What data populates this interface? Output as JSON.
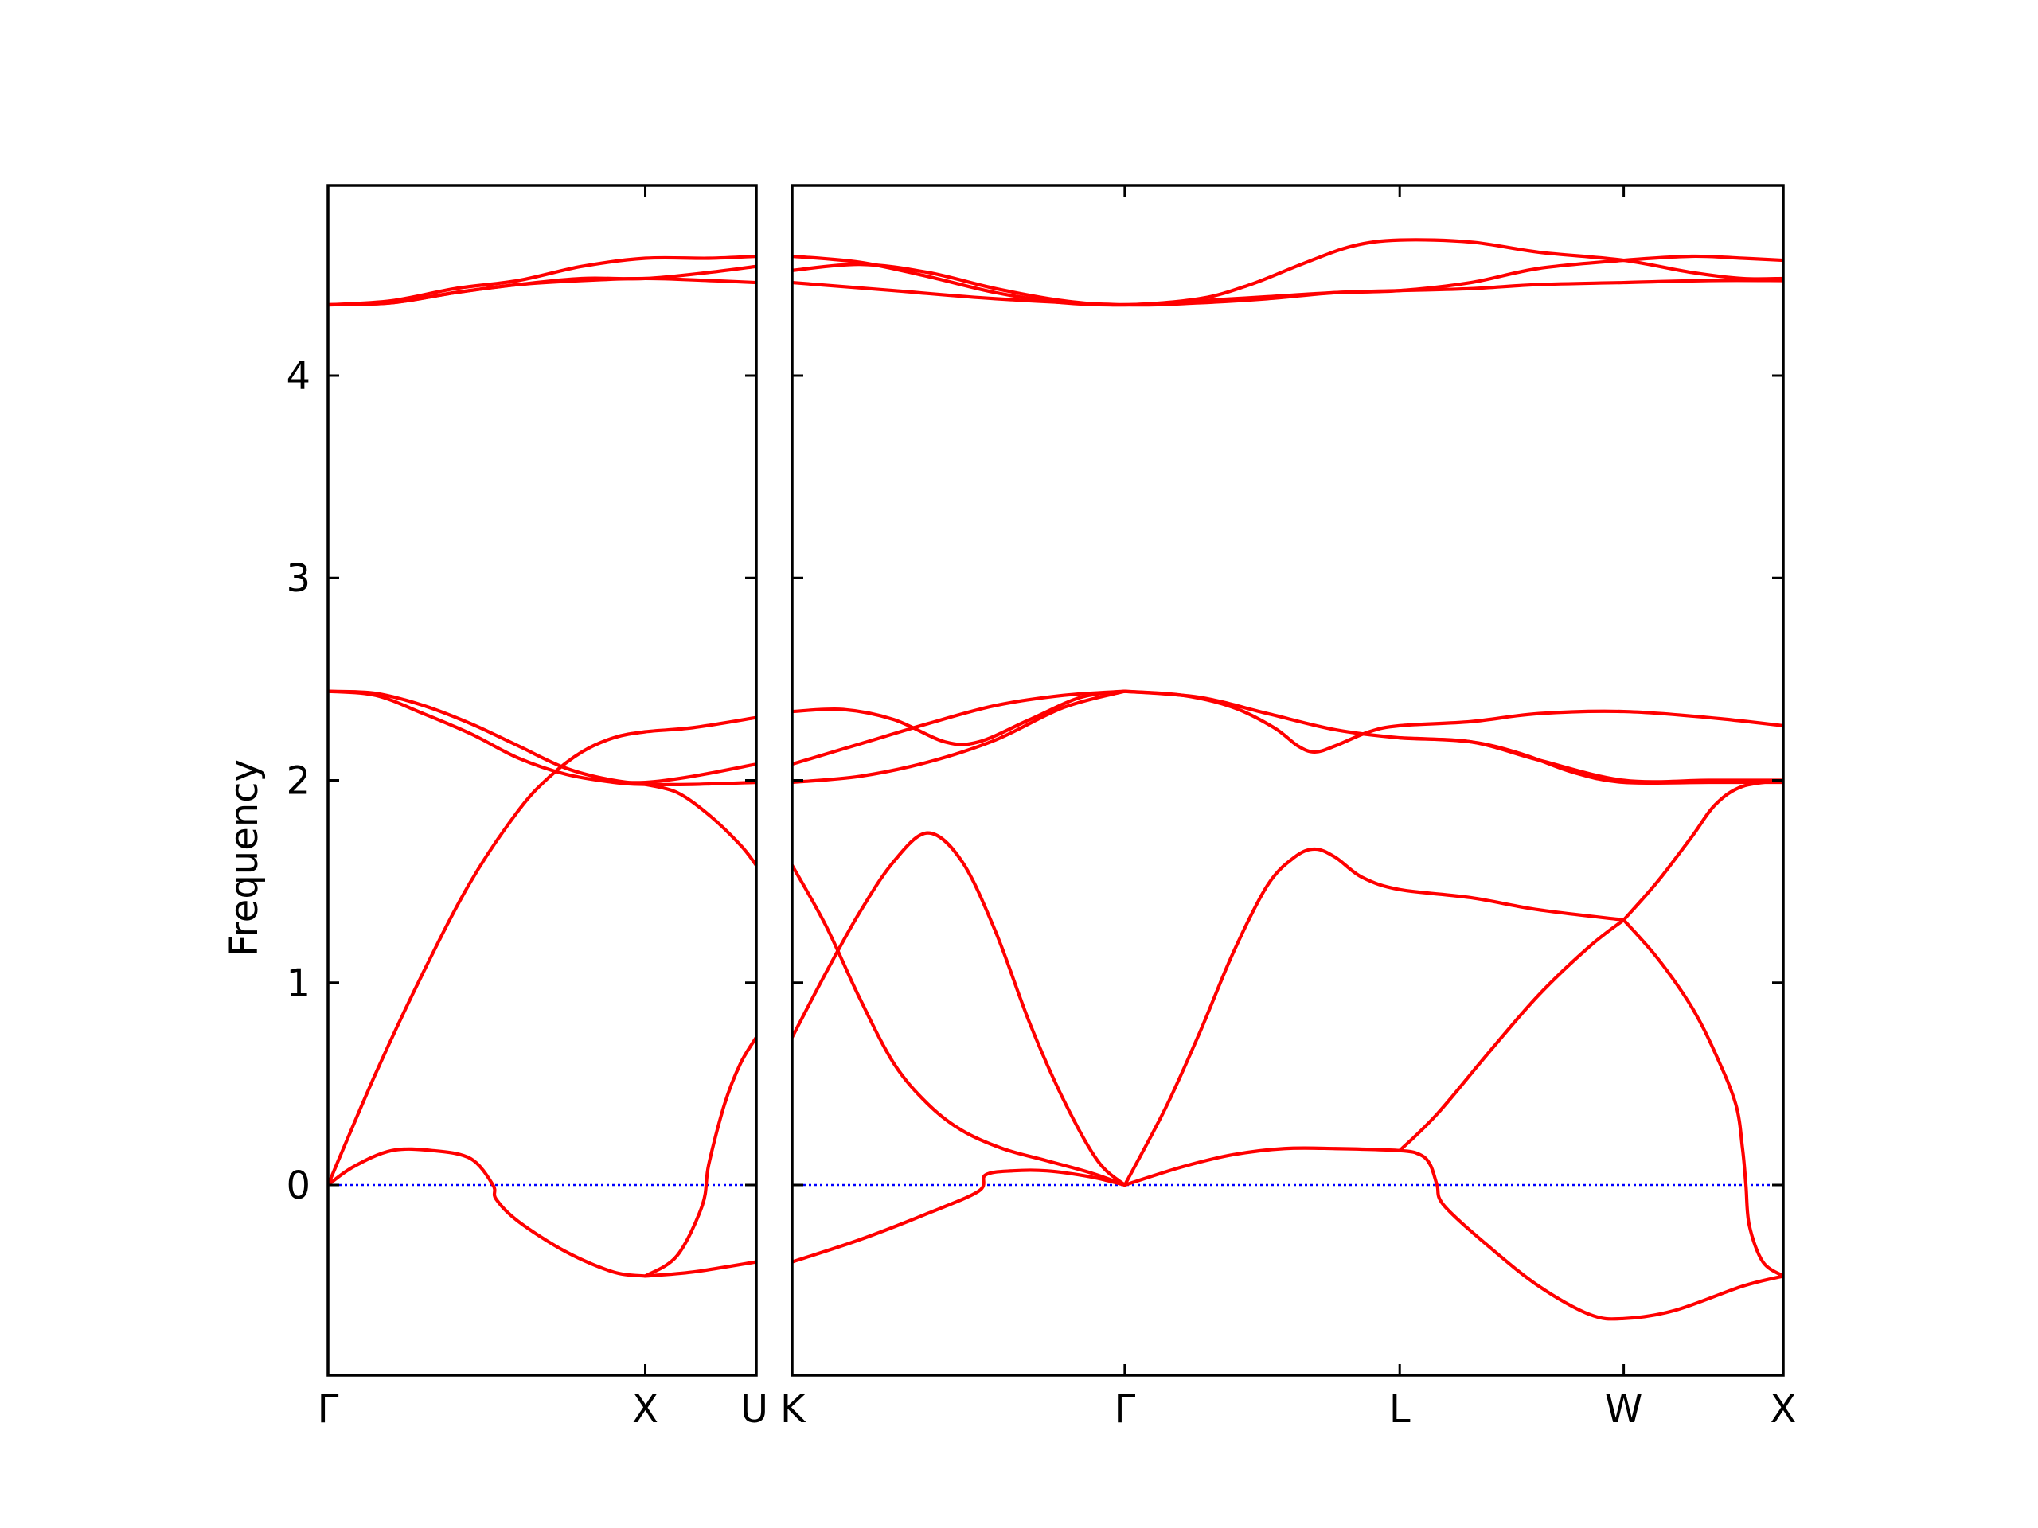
{
  "chart_data": {
    "type": "line",
    "title": "",
    "xlabel": "",
    "ylabel": "Frequency",
    "ylim": [
      -0.94,
      4.94
    ],
    "yticks": [
      0,
      1,
      2,
      3,
      4
    ],
    "grid": false,
    "colors": {
      "band": "#ff0000",
      "zero_line": "#0000ff",
      "axes": "#000000"
    },
    "panels": [
      {
        "id": "left",
        "xlim": [
          0,
          1.35
        ],
        "xticks": [
          {
            "x": 0,
            "label": "Γ"
          },
          {
            "x": 1,
            "label": "X"
          },
          {
            "x": 1.35,
            "label": "U"
          }
        ],
        "bands": [
          [
            [
              0,
              0
            ],
            [
              0.08,
              0.09
            ],
            [
              0.2,
              0.17
            ],
            [
              0.33,
              0.17
            ],
            [
              0.45,
              0.13
            ],
            [
              0.52,
              0
            ],
            [
              0.53,
              -0.07
            ],
            [
              0.6,
              -0.18
            ],
            [
              0.75,
              -0.33
            ],
            [
              0.9,
              -0.43
            ],
            [
              1,
              -0.45
            ]
          ],
          [
            [
              1,
              -0.45
            ],
            [
              1.15,
              -0.43
            ],
            [
              1.35,
              -0.38
            ]
          ],
          [
            [
              0,
              0
            ],
            [
              0.15,
              0.55
            ],
            [
              0.3,
              1.05
            ],
            [
              0.45,
              1.5
            ],
            [
              0.6,
              1.85
            ],
            [
              0.7,
              2.02
            ],
            [
              0.8,
              2.14
            ],
            [
              0.9,
              2.21
            ],
            [
              1,
              2.24
            ],
            [
              1.15,
              2.26
            ],
            [
              1.35,
              2.31
            ]
          ],
          [
            [
              0,
              2.44
            ],
            [
              0.15,
              2.43
            ],
            [
              0.3,
              2.37
            ],
            [
              0.45,
              2.28
            ],
            [
              0.6,
              2.17
            ],
            [
              0.75,
              2.06
            ],
            [
              0.9,
              2.0
            ],
            [
              1,
              1.99
            ],
            [
              1.15,
              2.02
            ],
            [
              1.35,
              2.08
            ]
          ],
          [
            [
              0,
              2.44
            ],
            [
              0.15,
              2.42
            ],
            [
              0.3,
              2.33
            ],
            [
              0.45,
              2.23
            ],
            [
              0.6,
              2.11
            ],
            [
              0.75,
              2.03
            ],
            [
              0.9,
              1.99
            ],
            [
              1,
              1.98
            ],
            [
              1.15,
              1.98
            ],
            [
              1.35,
              1.99
            ]
          ],
          [
            [
              1,
              -0.45
            ],
            [
              1.1,
              -0.35
            ],
            [
              1.18,
              -0.1
            ],
            [
              1.2,
              0.1
            ],
            [
              1.25,
              0.4
            ],
            [
              1.3,
              0.6
            ],
            [
              1.35,
              0.73
            ]
          ],
          [
            [
              1,
              1.98
            ],
            [
              1.1,
              1.94
            ],
            [
              1.2,
              1.83
            ],
            [
              1.3,
              1.68
            ],
            [
              1.35,
              1.58
            ]
          ],
          [
            [
              0,
              4.35
            ],
            [
              0.2,
              4.36
            ],
            [
              0.4,
              4.41
            ],
            [
              0.6,
              4.45
            ],
            [
              0.8,
              4.47
            ],
            [
              1,
              4.48
            ],
            [
              1.2,
              4.47
            ],
            [
              1.35,
              4.46
            ]
          ],
          [
            [
              0,
              4.35
            ],
            [
              0.2,
              4.36
            ],
            [
              0.4,
              4.41
            ],
            [
              0.6,
              4.45
            ],
            [
              0.8,
              4.48
            ],
            [
              1,
              4.48
            ],
            [
              1.2,
              4.51
            ],
            [
              1.35,
              4.54
            ]
          ],
          [
            [
              0,
              4.35
            ],
            [
              0.2,
              4.37
            ],
            [
              0.4,
              4.43
            ],
            [
              0.6,
              4.47
            ],
            [
              0.8,
              4.54
            ],
            [
              1,
              4.58
            ],
            [
              1.2,
              4.58
            ],
            [
              1.35,
              4.59
            ]
          ]
        ]
      },
      {
        "id": "right",
        "xlim": [
          0,
          2.92
        ],
        "xticks": [
          {
            "x": 0,
            "label": "K"
          },
          {
            "x": 0.98,
            "label": "Γ"
          },
          {
            "x": 1.79,
            "label": "L"
          },
          {
            "x": 2.45,
            "label": "W"
          },
          {
            "x": 2.92,
            "label": "X"
          }
        ],
        "bands": [
          [
            [
              0,
              -0.38
            ],
            [
              0.2,
              -0.27
            ],
            [
              0.4,
              -0.14
            ],
            [
              0.55,
              -0.03
            ],
            [
              0.57,
              0.05
            ],
            [
              0.65,
              0.07
            ],
            [
              0.75,
              0.07
            ],
            [
              0.88,
              0.04
            ],
            [
              0.98,
              0
            ]
          ],
          [
            [
              0,
              1.58
            ],
            [
              0.1,
              1.28
            ],
            [
              0.2,
              0.92
            ],
            [
              0.3,
              0.6
            ],
            [
              0.4,
              0.4
            ],
            [
              0.5,
              0.27
            ],
            [
              0.62,
              0.18
            ],
            [
              0.75,
              0.12
            ],
            [
              0.88,
              0.06
            ],
            [
              0.98,
              0
            ]
          ],
          [
            [
              0,
              0.73
            ],
            [
              0.1,
              1.05
            ],
            [
              0.2,
              1.35
            ],
            [
              0.3,
              1.6
            ],
            [
              0.4,
              1.74
            ],
            [
              0.5,
              1.6
            ],
            [
              0.6,
              1.25
            ],
            [
              0.7,
              0.8
            ],
            [
              0.8,
              0.42
            ],
            [
              0.9,
              0.12
            ],
            [
              0.98,
              0
            ]
          ],
          [
            [
              0.98,
              0
            ],
            [
              1.1,
              0.38
            ],
            [
              1.2,
              0.75
            ],
            [
              1.3,
              1.15
            ],
            [
              1.4,
              1.48
            ],
            [
              1.48,
              1.62
            ],
            [
              1.54,
              1.66
            ],
            [
              1.6,
              1.62
            ],
            [
              1.68,
              1.52
            ],
            [
              1.79,
              1.46
            ],
            [
              2,
              1.42
            ],
            [
              2.2,
              1.36
            ],
            [
              2.45,
              1.31
            ]
          ],
          [
            [
              0.98,
              0
            ],
            [
              1.15,
              0.09
            ],
            [
              1.3,
              0.15
            ],
            [
              1.45,
              0.18
            ],
            [
              1.6,
              0.18
            ],
            [
              1.79,
              0.17
            ],
            [
              1.85,
              0.15
            ],
            [
              1.88,
              0.1
            ],
            [
              1.9,
              0
            ],
            [
              1.92,
              -0.1
            ],
            [
              2.05,
              -0.3
            ],
            [
              2.2,
              -0.5
            ],
            [
              2.35,
              -0.64
            ],
            [
              2.45,
              -0.66
            ],
            [
              2.6,
              -0.62
            ],
            [
              2.8,
              -0.5
            ],
            [
              2.92,
              -0.45
            ]
          ],
          [
            [
              1.79,
              0.17
            ],
            [
              1.9,
              0.35
            ],
            [
              2.05,
              0.65
            ],
            [
              2.2,
              0.94
            ],
            [
              2.35,
              1.18
            ],
            [
              2.45,
              1.31
            ]
          ],
          [
            [
              2.45,
              1.31
            ],
            [
              2.55,
              1.5
            ],
            [
              2.65,
              1.72
            ],
            [
              2.72,
              1.88
            ],
            [
              2.8,
              1.97
            ],
            [
              2.92,
              2.0
            ]
          ],
          [
            [
              2.45,
              1.31
            ],
            [
              2.55,
              1.12
            ],
            [
              2.65,
              0.88
            ],
            [
              2.72,
              0.65
            ],
            [
              2.78,
              0.4
            ],
            [
              2.8,
              0.18
            ],
            [
              2.81,
              0
            ],
            [
              2.82,
              -0.2
            ],
            [
              2.86,
              -0.38
            ],
            [
              2.92,
              -0.45
            ]
          ],
          [
            [
              0,
              2.34
            ],
            [
              0.15,
              2.35
            ],
            [
              0.3,
              2.3
            ],
            [
              0.45,
              2.19
            ],
            [
              0.55,
              2.19
            ],
            [
              0.7,
              2.3
            ],
            [
              0.85,
              2.41
            ],
            [
              0.98,
              2.44
            ]
          ],
          [
            [
              0,
              2.08
            ],
            [
              0.2,
              2.18
            ],
            [
              0.4,
              2.28
            ],
            [
              0.6,
              2.37
            ],
            [
              0.8,
              2.42
            ],
            [
              0.98,
              2.44
            ]
          ],
          [
            [
              0,
              1.99
            ],
            [
              0.2,
              2.02
            ],
            [
              0.4,
              2.09
            ],
            [
              0.6,
              2.2
            ],
            [
              0.8,
              2.36
            ],
            [
              0.98,
              2.44
            ]
          ],
          [
            [
              0.98,
              2.44
            ],
            [
              1.15,
              2.42
            ],
            [
              1.3,
              2.36
            ],
            [
              1.42,
              2.26
            ],
            [
              1.49,
              2.17
            ],
            [
              1.54,
              2.14
            ],
            [
              1.6,
              2.17
            ],
            [
              1.7,
              2.24
            ],
            [
              1.79,
              2.27
            ],
            [
              2.0,
              2.29
            ],
            [
              2.2,
              2.33
            ],
            [
              2.45,
              2.34
            ],
            [
              2.7,
              2.31
            ],
            [
              2.92,
              2.27
            ]
          ],
          [
            [
              0.98,
              2.44
            ],
            [
              1.2,
              2.41
            ],
            [
              1.4,
              2.33
            ],
            [
              1.6,
              2.25
            ],
            [
              1.79,
              2.21
            ],
            [
              2.0,
              2.19
            ],
            [
              2.2,
              2.1
            ],
            [
              2.45,
              2.0
            ],
            [
              2.7,
              2.0
            ],
            [
              2.92,
              2.0
            ]
          ],
          [
            [
              1.79,
              2.21
            ],
            [
              2.0,
              2.19
            ],
            [
              2.15,
              2.13
            ],
            [
              2.3,
              2.04
            ],
            [
              2.45,
              1.99
            ],
            [
              2.7,
              1.99
            ],
            [
              2.92,
              1.99
            ]
          ],
          [
            [
              0,
              4.46
            ],
            [
              0.3,
              4.42
            ],
            [
              0.6,
              4.38
            ],
            [
              0.98,
              4.35
            ],
            [
              1.2,
              4.36
            ],
            [
              1.4,
              4.38
            ],
            [
              1.6,
              4.41
            ],
            [
              1.79,
              4.42
            ],
            [
              2.0,
              4.43
            ],
            [
              2.2,
              4.45
            ],
            [
              2.45,
              4.46
            ],
            [
              2.7,
              4.47
            ],
            [
              2.92,
              4.47
            ]
          ],
          [
            [
              0,
              4.52
            ],
            [
              0.2,
              4.55
            ],
            [
              0.4,
              4.51
            ],
            [
              0.6,
              4.43
            ],
            [
              0.8,
              4.37
            ],
            [
              0.98,
              4.35
            ],
            [
              1.2,
              4.38
            ],
            [
              1.35,
              4.45
            ],
            [
              1.5,
              4.55
            ],
            [
              1.65,
              4.64
            ],
            [
              1.79,
              4.67
            ],
            [
              2.0,
              4.66
            ],
            [
              2.2,
              4.61
            ],
            [
              2.45,
              4.57
            ],
            [
              2.65,
              4.51
            ],
            [
              2.8,
              4.48
            ],
            [
              2.92,
              4.48
            ]
          ],
          [
            [
              0,
              4.59
            ],
            [
              0.2,
              4.56
            ],
            [
              0.4,
              4.49
            ],
            [
              0.6,
              4.41
            ],
            [
              0.8,
              4.36
            ],
            [
              0.98,
              4.35
            ],
            [
              1.2,
              4.37
            ],
            [
              1.4,
              4.39
            ],
            [
              1.6,
              4.41
            ],
            [
              1.79,
              4.42
            ],
            [
              2.0,
              4.46
            ],
            [
              2.2,
              4.53
            ],
            [
              2.45,
              4.57
            ],
            [
              2.65,
              4.59
            ],
            [
              2.8,
              4.58
            ],
            [
              2.92,
              4.57
            ]
          ]
        ]
      }
    ]
  }
}
